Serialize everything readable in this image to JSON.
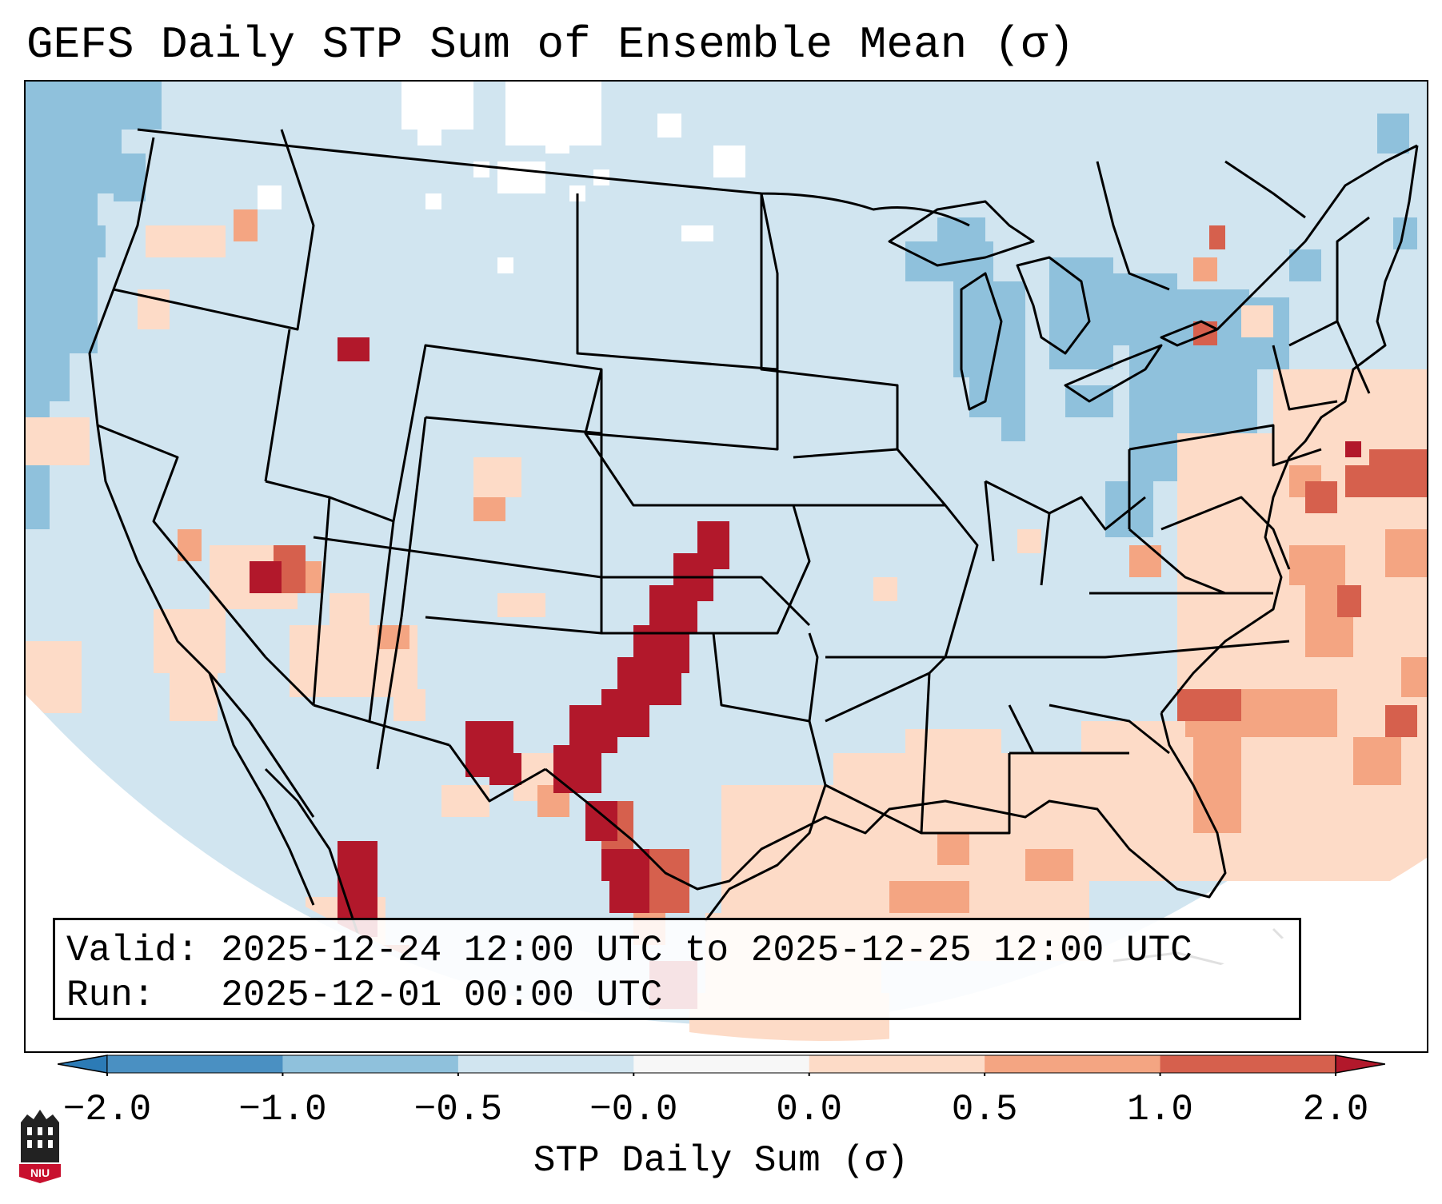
{
  "title": "GEFS Daily STP Sum of Ensemble Mean (σ)",
  "info": {
    "valid_line": "Valid: 2025-12-24 12:00 UTC to 2025-12-25 12:00 UTC",
    "run_line": "Run:   2025-12-01 00:00 UTC"
  },
  "colorbar": {
    "label": "STP Daily Sum (σ)",
    "ticks": [
      "−2.0",
      "−1.0",
      "−0.5",
      "−0.0",
      "0.0",
      "0.5",
      "1.0",
      "2.0"
    ],
    "bins": [
      {
        "from": "<-2.0",
        "color": "#2c7bb6"
      },
      {
        "from": "-2.0",
        "to": "-1.0",
        "color": "#4a90c2"
      },
      {
        "from": "-1.0",
        "to": "-0.5",
        "color": "#8fc1dc"
      },
      {
        "from": "-0.5",
        "to": "-0.0",
        "color": "#d1e5f0"
      },
      {
        "from": "-0.0",
        "to": "0.0",
        "color": "#f7f7f7"
      },
      {
        "from": "0.0",
        "to": "0.5",
        "color": "#fddbc7"
      },
      {
        "from": "0.5",
        "to": "1.0",
        "color": "#f4a582"
      },
      {
        "from": "1.0",
        "to": "2.0",
        "color": "#d6604d"
      },
      {
        "from": ">2.0",
        "color": "#b2182b"
      }
    ],
    "extend": "both"
  },
  "map": {
    "projection": "lambert-conformal",
    "region": "CONUS",
    "features": {
      "max_anomaly_region": "Southern Plains (TX panhandle to Kansas)",
      "negative_region": "Great Lakes and Northeast"
    }
  },
  "logo": {
    "text": "NIU",
    "color": "#c8102e"
  },
  "colors": {
    "background": "#ffffff",
    "border": "#000000"
  }
}
